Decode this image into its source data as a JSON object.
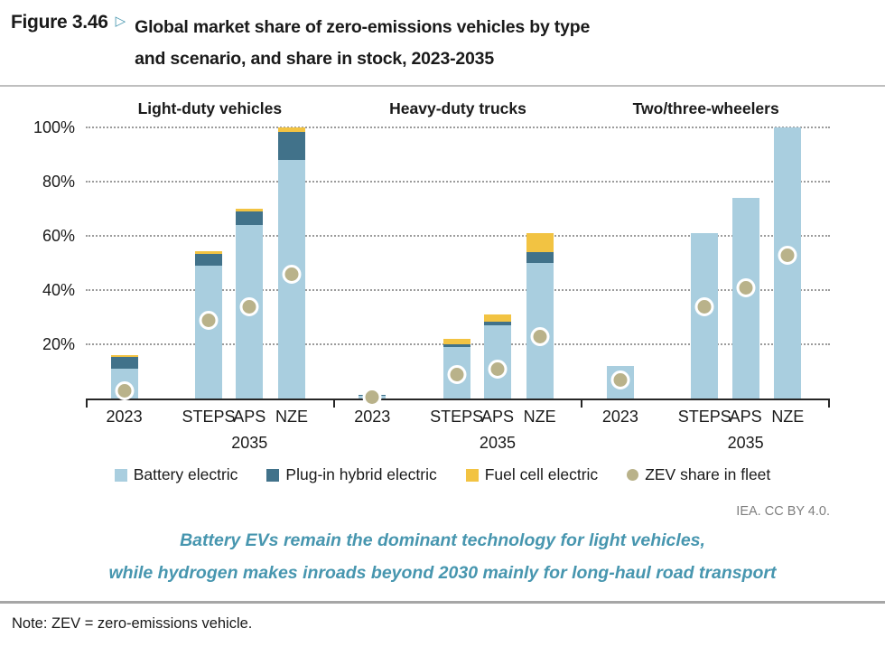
{
  "figure": {
    "label": "Figure 3.46",
    "marker": "▷",
    "title_line1": "Global market share of zero-emissions vehicles by type",
    "title_line2": "and scenario, and share in stock, 2023-2035"
  },
  "chart_data": {
    "type": "bar",
    "stacked": true,
    "unit": "percent",
    "ylim": [
      0,
      100
    ],
    "yticks": [
      "100%",
      "80%",
      "60%",
      "40%",
      "20%"
    ],
    "grid": "dotted horizontal",
    "series_names": [
      "Battery electric",
      "Plug-in hybrid electric",
      "Fuel cell electric"
    ],
    "overlay_series": "ZEV share in fleet",
    "colors": {
      "battery_electric": "#A9CEDF",
      "plugin_hybrid": "#41728A",
      "fuel_cell": "#F2C342",
      "zev_dot": "#B9B28A",
      "axis": "#262626"
    },
    "groups": [
      {
        "title": "Light-duty vehicles",
        "categories": [
          "2023",
          "STEPS",
          "APS",
          "NZE"
        ],
        "year_label": "2035",
        "bars": [
          {
            "label": "2023",
            "battery_electric": 11,
            "plugin_hybrid": 4.5,
            "fuel_cell": 0.5,
            "zev_share_in_fleet": 3
          },
          {
            "label": "STEPS",
            "battery_electric": 49,
            "plugin_hybrid": 4.5,
            "fuel_cell": 1,
            "zev_share_in_fleet": 29
          },
          {
            "label": "APS",
            "battery_electric": 64,
            "plugin_hybrid": 5,
            "fuel_cell": 1,
            "zev_share_in_fleet": 34
          },
          {
            "label": "NZE",
            "battery_electric": 88,
            "plugin_hybrid": 10.5,
            "fuel_cell": 1.5,
            "zev_share_in_fleet": 46
          }
        ]
      },
      {
        "title": "Heavy-duty trucks",
        "categories": [
          "2023",
          "STEPS",
          "APS",
          "NZE"
        ],
        "year_label": "2035",
        "bars": [
          {
            "label": "2023",
            "battery_electric": 1,
            "plugin_hybrid": 0.5,
            "fuel_cell": 0,
            "zev_share_in_fleet": 0.5
          },
          {
            "label": "STEPS",
            "battery_electric": 19,
            "plugin_hybrid": 1,
            "fuel_cell": 2,
            "zev_share_in_fleet": 9
          },
          {
            "label": "APS",
            "battery_electric": 27,
            "plugin_hybrid": 1.5,
            "fuel_cell": 2.5,
            "zev_share_in_fleet": 11
          },
          {
            "label": "NZE",
            "battery_electric": 50,
            "plugin_hybrid": 4,
            "fuel_cell": 7,
            "zev_share_in_fleet": 23
          }
        ]
      },
      {
        "title": "Two/three-wheelers",
        "categories": [
          "2023",
          "STEPS",
          "APS",
          "NZE"
        ],
        "year_label": "2035",
        "bars": [
          {
            "label": "2023",
            "battery_electric": 12,
            "plugin_hybrid": 0,
            "fuel_cell": 0,
            "zev_share_in_fleet": 7
          },
          {
            "label": "STEPS",
            "battery_electric": 61,
            "plugin_hybrid": 0,
            "fuel_cell": 0,
            "zev_share_in_fleet": 34
          },
          {
            "label": "APS",
            "battery_electric": 74,
            "plugin_hybrid": 0,
            "fuel_cell": 0,
            "zev_share_in_fleet": 41
          },
          {
            "label": "NZE",
            "battery_electric": 100,
            "plugin_hybrid": 0,
            "fuel_cell": 0,
            "zev_share_in_fleet": 53
          }
        ]
      }
    ]
  },
  "legend": {
    "items": [
      {
        "label": "Battery electric",
        "shape": "square",
        "color": "#A9CEDF"
      },
      {
        "label": "Plug-in hybrid electric",
        "shape": "square",
        "color": "#41728A"
      },
      {
        "label": "Fuel cell electric",
        "shape": "square",
        "color": "#F2C342"
      },
      {
        "label": "ZEV share in fleet",
        "shape": "circle",
        "color": "#B9B28A"
      }
    ]
  },
  "attribution": "IEA. CC BY 4.0.",
  "message": {
    "line1": "Battery EVs remain the dominant technology for light vehicles,",
    "line2": "while hydrogen makes inroads beyond 2030 mainly for long-haul road transport"
  },
  "note": "Note: ZEV = zero-emissions vehicle."
}
